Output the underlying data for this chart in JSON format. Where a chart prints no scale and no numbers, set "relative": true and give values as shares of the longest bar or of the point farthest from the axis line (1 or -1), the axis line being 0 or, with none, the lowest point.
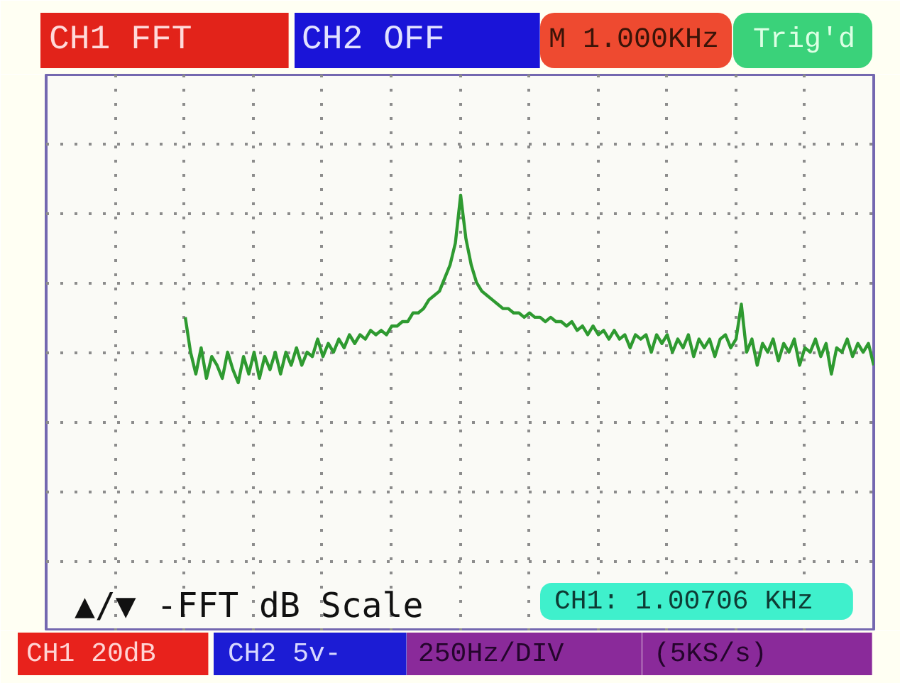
{
  "chart_data": {
    "type": "line",
    "relative": true,
    "grid": true,
    "line_style": "solid",
    "categories": [
      null,
      null,
      null,
      null,
      null,
      null,
      null,
      null,
      null,
      null,
      null,
      null,
      null,
      null,
      null,
      null,
      null,
      null,
      null,
      null,
      null,
      null,
      null,
      null,
      null,
      null,
      null,
      null,
      null,
      null,
      null,
      null,
      null,
      null,
      null,
      null,
      null,
      null,
      null,
      null,
      null,
      null,
      null,
      null,
      null,
      null,
      null,
      null,
      null,
      null,
      null,
      null,
      null,
      null,
      null,
      null,
      null,
      null,
      null,
      null,
      null,
      null,
      null,
      null,
      null,
      null,
      null,
      null,
      null,
      null,
      null,
      null,
      null,
      null,
      null,
      null,
      null,
      null,
      null,
      null,
      null,
      null,
      null,
      null,
      null,
      null,
      null,
      null,
      null,
      null,
      null,
      null,
      null,
      null,
      null,
      null,
      null,
      null,
      null,
      null,
      null,
      null,
      null,
      null,
      null,
      null,
      null,
      null,
      null,
      null,
      null,
      null,
      null,
      null,
      null,
      null,
      null,
      null,
      null,
      null,
      null,
      null,
      null,
      null,
      null,
      null,
      null,
      null,
      null,
      null,
      null
    ],
    "series": [
      {
        "color": "#2e9a30",
        "values": [
          0.72,
          0.64,
          0.59,
          0.65,
          0.58,
          0.63,
          0.61,
          0.58,
          0.64,
          0.6,
          0.57,
          0.63,
          0.59,
          0.64,
          0.58,
          0.63,
          0.6,
          0.64,
          0.59,
          0.64,
          0.61,
          0.65,
          0.61,
          0.64,
          0.63,
          0.67,
          0.63,
          0.66,
          0.64,
          0.67,
          0.65,
          0.68,
          0.66,
          0.68,
          0.67,
          0.69,
          0.68,
          0.69,
          0.68,
          0.7,
          0.7,
          0.71,
          0.71,
          0.73,
          0.73,
          0.74,
          0.76,
          0.77,
          0.78,
          0.81,
          0.84,
          0.89,
          1.0,
          0.9,
          0.84,
          0.8,
          0.78,
          0.77,
          0.76,
          0.75,
          0.74,
          0.74,
          0.73,
          0.73,
          0.72,
          0.73,
          0.72,
          0.72,
          0.71,
          0.72,
          0.71,
          0.71,
          0.7,
          0.71,
          0.69,
          0.7,
          0.68,
          0.7,
          0.68,
          0.69,
          0.67,
          0.69,
          0.67,
          0.68,
          0.65,
          0.68,
          0.67,
          0.68,
          0.64,
          0.68,
          0.66,
          0.68,
          0.64,
          0.67,
          0.65,
          0.68,
          0.63,
          0.67,
          0.65,
          0.67,
          0.63,
          0.67,
          0.68,
          0.65,
          0.67,
          0.75,
          0.64,
          0.67,
          0.61,
          0.66,
          0.64,
          0.67,
          0.62,
          0.66,
          0.64,
          0.67,
          0.61,
          0.65,
          0.64,
          0.67,
          0.63,
          0.66,
          0.59,
          0.65,
          0.64,
          0.67,
          0.63,
          0.66,
          0.64,
          0.66,
          0.61
        ]
      }
    ],
    "annotations": [
      "CH1 FFT",
      "CH2 OFF",
      "M 1.000KHz",
      "Trig'd",
      "▲/▼ -FFT dB Scale",
      "CH1: 1.00706 KHz",
      "CH1 20dB",
      "CH2 5v-",
      "250Hz/DIV",
      "(5KS/s)"
    ]
  }
}
